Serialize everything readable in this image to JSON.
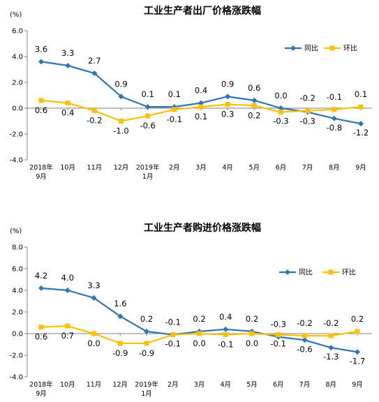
{
  "chart_data": [
    {
      "type": "line",
      "title": "工业生产者出厂价格涨跌幅",
      "unit": "(%)",
      "ylim": [
        -4.0,
        6.0
      ],
      "yticks": [
        "6.0",
        "4.0",
        "2.0",
        "0.0",
        "-2.0",
        "-4.0"
      ],
      "grid": false,
      "legend_position": "top-right",
      "categories": [
        [
          "2018年",
          "9月"
        ],
        [
          "10月"
        ],
        [
          "11月"
        ],
        [
          "12月"
        ],
        [
          "2019年",
          "1月"
        ],
        [
          "2月"
        ],
        [
          "3月"
        ],
        [
          "4月"
        ],
        [
          "5月"
        ],
        [
          "6月"
        ],
        [
          "7月"
        ],
        [
          "8月"
        ],
        [
          "9月"
        ]
      ],
      "series": [
        {
          "name": "同比",
          "color": "#2e75b6",
          "marker": "diamond",
          "values": [
            3.6,
            3.3,
            2.7,
            0.9,
            0.1,
            0.1,
            0.4,
            0.9,
            0.6,
            0.0,
            -0.3,
            -0.8,
            -1.2
          ],
          "labels": [
            "3.6",
            "3.3",
            "2.7",
            "0.9",
            "0.1",
            "0.1",
            "0.4",
            "0.9",
            "0.6",
            "0.0",
            "-0.3",
            "-0.8",
            "-1.2"
          ]
        },
        {
          "name": "环比",
          "color": "#ffc000",
          "marker": "square",
          "values": [
            0.6,
            0.4,
            -0.2,
            -1.0,
            -0.6,
            -0.1,
            0.1,
            0.3,
            0.2,
            -0.3,
            -0.2,
            -0.1,
            0.1
          ],
          "labels": [
            "0.6",
            "0.4",
            "-0.2",
            "-1.0",
            "-0.6",
            "-0.1",
            "0.1",
            "0.3",
            "0.2",
            "-0.3",
            "-0.2",
            "-0.1",
            "0.1"
          ]
        }
      ]
    },
    {
      "type": "line",
      "title": "工业生产者购进价格涨跌幅",
      "unit": "(%)",
      "ylim": [
        -4.0,
        8.0
      ],
      "yticks": [
        "8.0",
        "6.0",
        "4.0",
        "2.0",
        "0.0",
        "-2.0",
        "-4.0"
      ],
      "grid": false,
      "legend_position": "top-right",
      "categories": [
        [
          "2018年",
          "9月"
        ],
        [
          "10月"
        ],
        [
          "11月"
        ],
        [
          "12月"
        ],
        [
          "2019年",
          "1月"
        ],
        [
          "2月"
        ],
        [
          "3月"
        ],
        [
          "4月"
        ],
        [
          "5月"
        ],
        [
          "6月"
        ],
        [
          "7月"
        ],
        [
          "8月"
        ],
        [
          "9月"
        ]
      ],
      "series": [
        {
          "name": "同比",
          "color": "#2e75b6",
          "marker": "diamond",
          "values": [
            4.2,
            4.0,
            3.3,
            1.6,
            0.2,
            -0.1,
            0.2,
            0.4,
            0.2,
            -0.3,
            -0.6,
            -1.3,
            -1.7
          ],
          "labels": [
            "4.2",
            "4.0",
            "3.3",
            "1.6",
            "0.2",
            "-0.1",
            "0.2",
            "0.4",
            "0.2",
            "-0.3",
            "-0.6",
            "-1.3",
            "-1.7"
          ]
        },
        {
          "name": "环比",
          "color": "#ffc000",
          "marker": "square",
          "values": [
            0.6,
            0.7,
            0.0,
            -0.9,
            -0.9,
            -0.1,
            0.0,
            -0.1,
            0.0,
            -0.1,
            -0.2,
            -0.2,
            0.2
          ],
          "labels": [
            "0.6",
            "0.7",
            "0.0",
            "-0.9",
            "-0.9",
            "-0.1",
            "0.0",
            "-0.1",
            "0.0",
            "-0.1",
            "-0.2",
            "-0.2",
            "0.2"
          ]
        }
      ]
    }
  ]
}
